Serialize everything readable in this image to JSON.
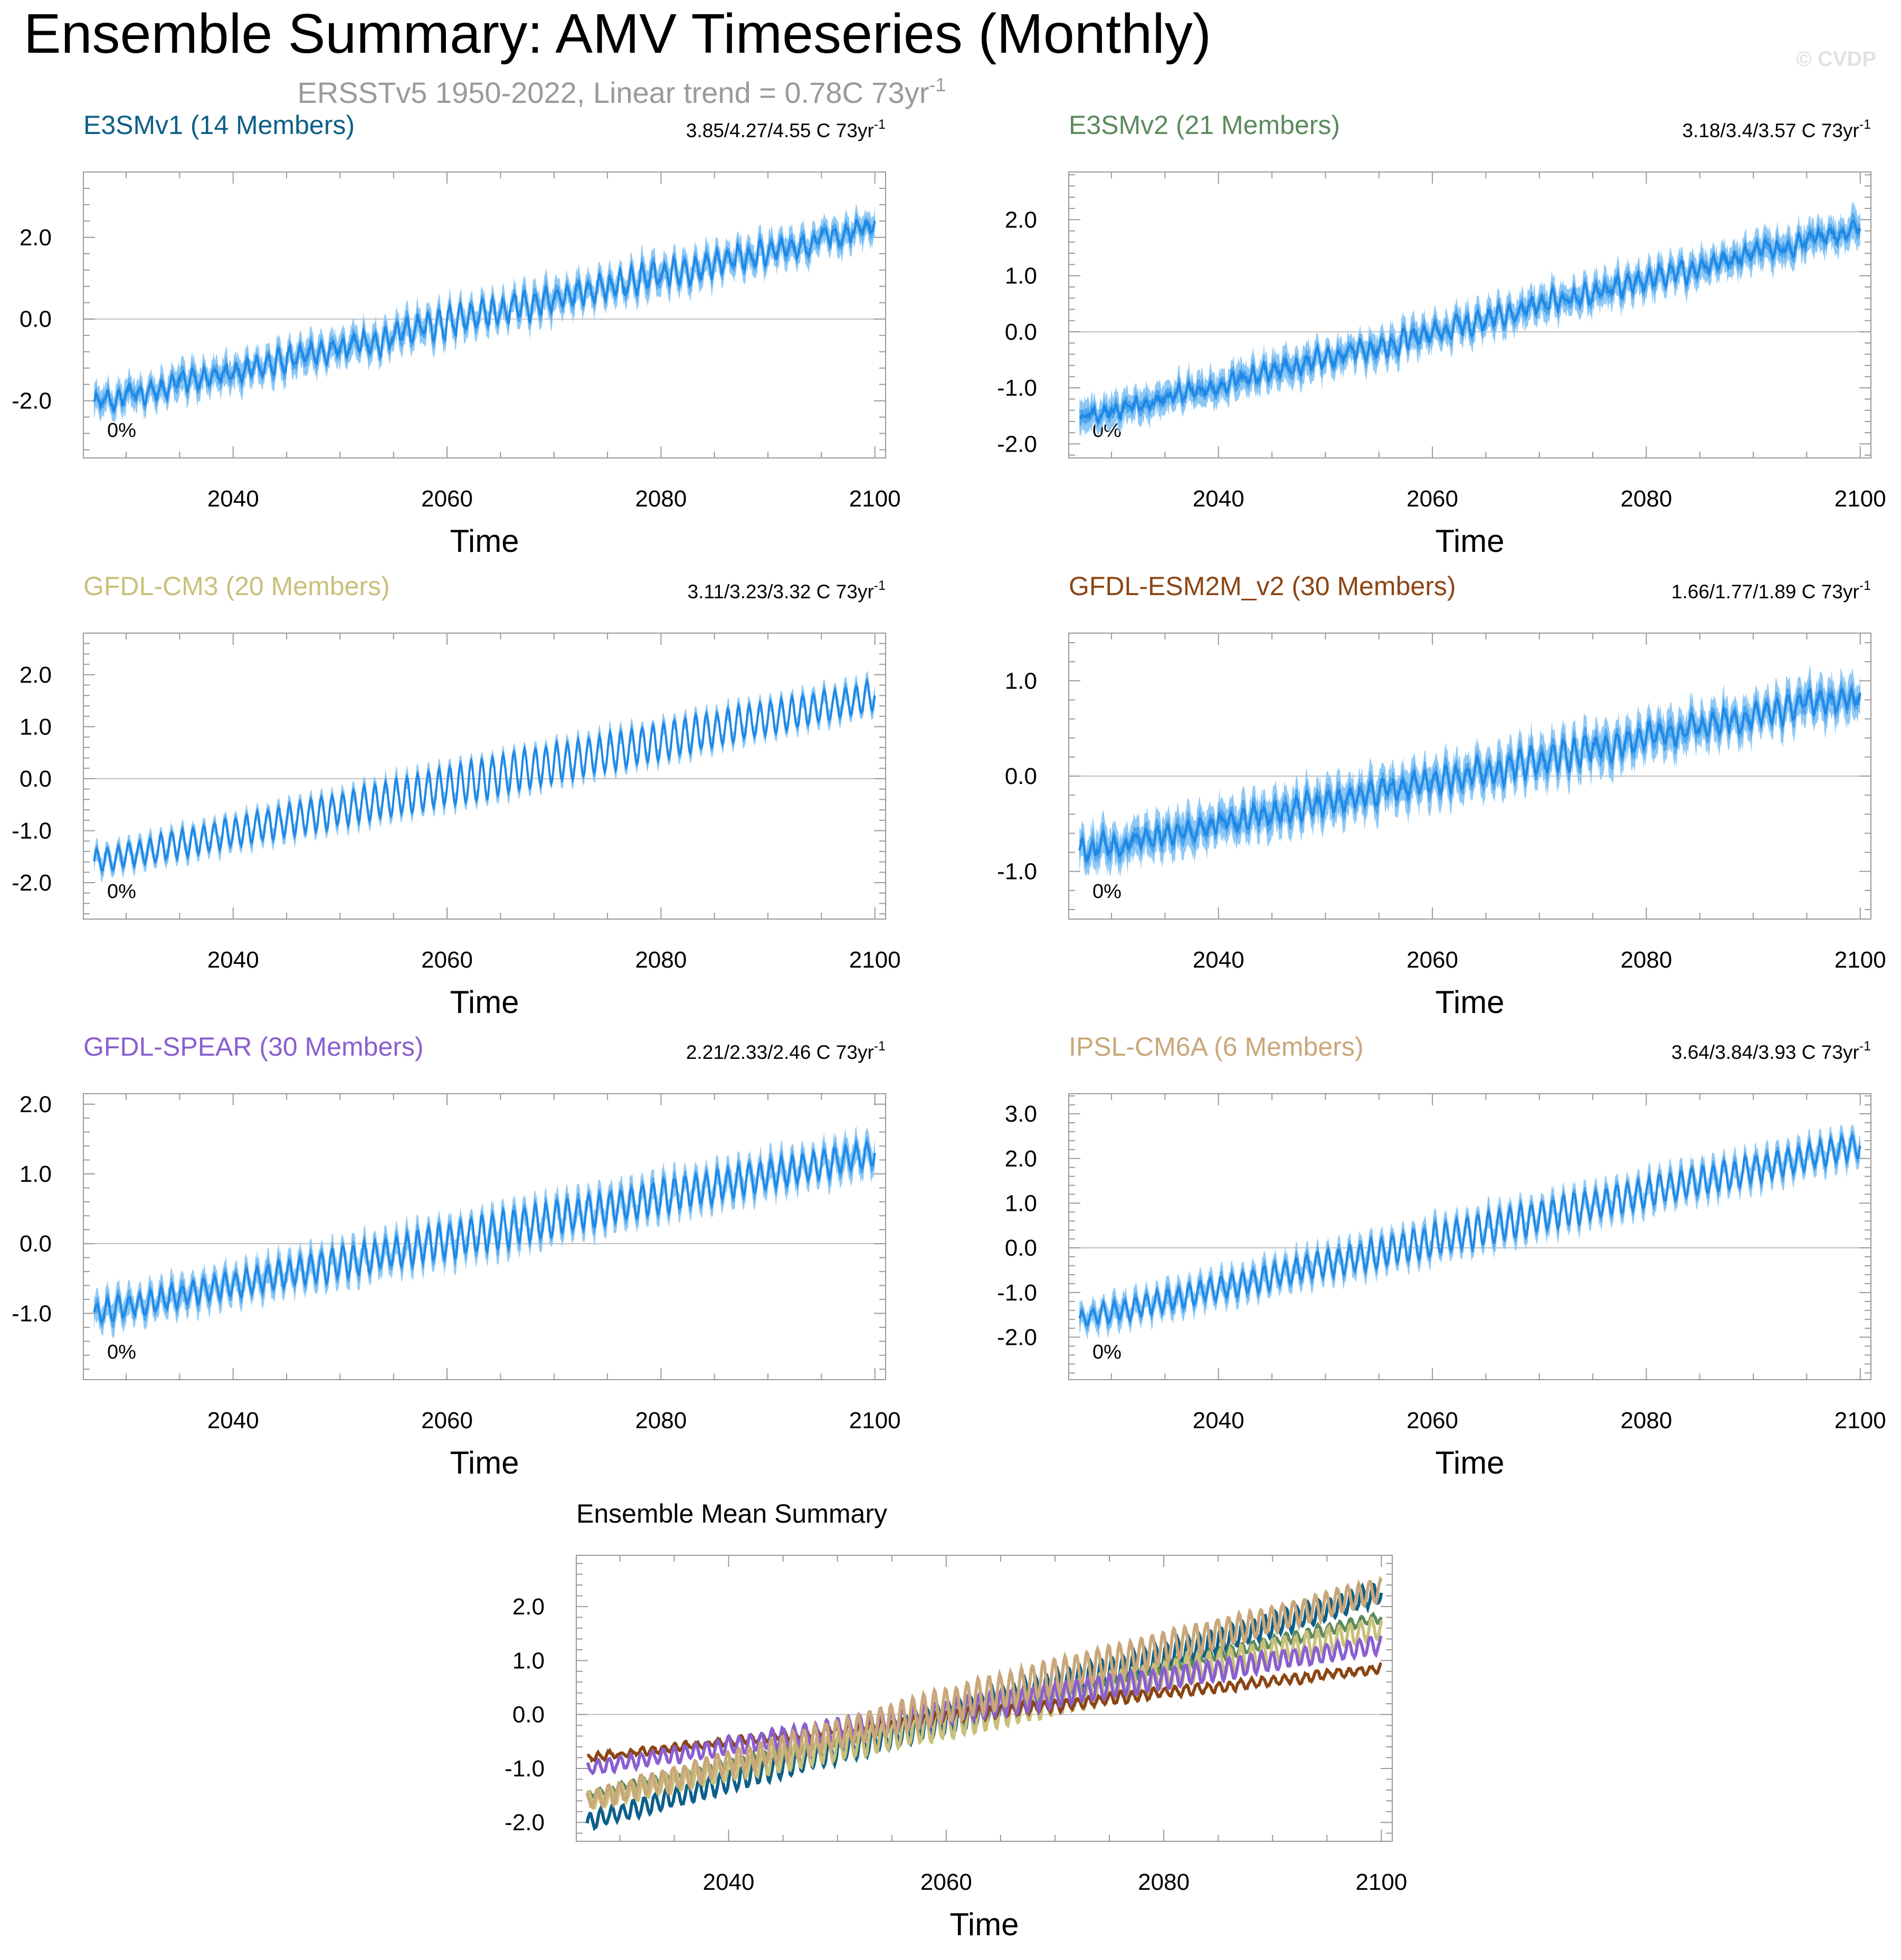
{
  "figure": {
    "title": "Ensemble Summary: AMV Timeseries (Monthly)",
    "subtitle_main": "ERSSTv5 1950-2022, Linear trend = 0.78C 73yr",
    "subtitle_sup": "-1",
    "copyright": "© CVDP"
  },
  "colors": {
    "band_light": "#8ec8f5",
    "band_mid": "#4fa6ee",
    "line": "#1e88e5",
    "grid_zero": "#bdbdbd",
    "axis": "#999999"
  },
  "chart_data": [
    {
      "type": "area",
      "title": "E3SMv1 (14 Members)",
      "title_color": "#0c5f88",
      "trend_text": "3.85/4.27/4.55 C 73yr",
      "trend_sup": "-1",
      "pct_label": "0%",
      "xlabel": "Time",
      "ylabel": "",
      "xlim": [
        2026,
        2101
      ],
      "ylim": [
        -3.4,
        3.6
      ],
      "xticks": [
        2040,
        2060,
        2080,
        2100
      ],
      "yticks": [
        -2.0,
        0.0,
        2.0
      ],
      "ytick_labels": [
        "-2.0",
        "0.0",
        "2.0"
      ],
      "series": {
        "start": [
          2027,
          -2.05
        ],
        "end": [
          2100,
          2.25
        ],
        "seasonal_amp": 0.3,
        "noise": 0.22,
        "spread": 0.38,
        "bend": 0.0
      }
    },
    {
      "type": "area",
      "title": "E3SMv2 (21 Members)",
      "title_color": "#5b8a5d",
      "trend_text": "3.18/3.4/3.57 C 73yr",
      "trend_sup": "-1",
      "pct_label": "0%",
      "xlabel": "Time",
      "ylabel": "",
      "xlim": [
        2026,
        2101
      ],
      "ylim": [
        -2.25,
        2.85
      ],
      "xticks": [
        2040,
        2060,
        2080,
        2100
      ],
      "yticks": [
        -2.0,
        -1.0,
        0.0,
        1.0,
        2.0
      ],
      "ytick_labels": [
        "-2.0",
        "-1.0",
        "0.0",
        "1.0",
        "2.0"
      ],
      "series": {
        "start": [
          2027,
          -1.55
        ],
        "end": [
          2100,
          1.85
        ],
        "seasonal_amp": 0.15,
        "noise": 0.16,
        "spread": 0.3,
        "bend": 0.0
      }
    },
    {
      "type": "area",
      "title": "GFDL-CM3 (20 Members)",
      "title_color": "#c9c07a",
      "trend_text": "3.11/3.23/3.32 C 73yr",
      "trend_sup": "-1",
      "pct_label": "0%",
      "xlabel": "Time",
      "ylabel": "",
      "xlim": [
        2026,
        2101
      ],
      "ylim": [
        -2.7,
        2.8
      ],
      "xticks": [
        2040,
        2060,
        2080,
        2100
      ],
      "yticks": [
        -2.0,
        -1.0,
        0.0,
        1.0,
        2.0
      ],
      "ytick_labels": [
        "-2.0",
        "-1.0",
        "0.0",
        "1.0",
        "2.0"
      ],
      "series": {
        "start": [
          2027,
          -1.6
        ],
        "end": [
          2100,
          1.6
        ],
        "seasonal_amp": 0.38,
        "noise": 0.05,
        "spread": 0.2,
        "bend": 0.0
      }
    },
    {
      "type": "area",
      "title": "GFDL-ESM2M_v2 (30 Members)",
      "title_color": "#8b4513",
      "trend_text": "1.66/1.77/1.89 C 73yr",
      "trend_sup": "-1",
      "pct_label": "0%",
      "xlabel": "Time",
      "ylabel": "",
      "xlim": [
        2026,
        2101
      ],
      "ylim": [
        -1.5,
        1.5
      ],
      "xticks": [
        2040,
        2060,
        2080,
        2100
      ],
      "yticks": [
        -1.0,
        0.0,
        1.0
      ],
      "ytick_labels": [
        "-1.0",
        "0.0",
        "1.0"
      ],
      "series": {
        "start": [
          2027,
          -0.8
        ],
        "end": [
          2100,
          0.85
        ],
        "seasonal_amp": 0.12,
        "noise": 0.1,
        "spread": 0.22,
        "bend": 0.0
      }
    },
    {
      "type": "area",
      "title": "GFDL-SPEAR (30 Members)",
      "title_color": "#8a5fd0",
      "trend_text": "2.21/2.33/2.46 C 73yr",
      "trend_sup": "-1",
      "pct_label": "0%",
      "xlabel": "Time",
      "ylabel": "",
      "xlim": [
        2026,
        2101
      ],
      "ylim": [
        -1.95,
        2.15
      ],
      "xticks": [
        2040,
        2060,
        2080,
        2100
      ],
      "yticks": [
        -1.0,
        0.0,
        1.0,
        2.0
      ],
      "ytick_labels": [
        "-1.0",
        "0.0",
        "1.0",
        "2.0"
      ],
      "series": {
        "start": [
          2027,
          -1.0
        ],
        "end": [
          2100,
          1.3
        ],
        "seasonal_amp": 0.25,
        "noise": 0.06,
        "spread": 0.22,
        "bend": 0.0
      }
    },
    {
      "type": "area",
      "title": "IPSL-CM6A (6 Members)",
      "title_color": "#c9a77a",
      "trend_text": "3.64/3.84/3.93 C 73yr",
      "trend_sup": "-1",
      "pct_label": "0%",
      "xlabel": "Time",
      "ylabel": "",
      "xlim": [
        2026,
        2101
      ],
      "ylim": [
        -2.95,
        3.45
      ],
      "xticks": [
        2040,
        2060,
        2080,
        2100
      ],
      "yticks": [
        -2.0,
        -1.0,
        0.0,
        1.0,
        2.0,
        3.0
      ],
      "ytick_labels": [
        "-2.0",
        "-1.0",
        "0.0",
        "1.0",
        "2.0",
        "3.0"
      ],
      "series": {
        "start": [
          2027,
          -1.6
        ],
        "end": [
          2100,
          2.3
        ],
        "seasonal_amp": 0.35,
        "noise": 0.08,
        "spread": 0.3,
        "bend": 0.0
      }
    },
    {
      "type": "line",
      "title": "Ensemble Mean Summary",
      "xlabel": "Time",
      "ylabel": "",
      "xlim": [
        2026,
        2101
      ],
      "ylim": [
        -2.35,
        2.95
      ],
      "xticks": [
        2040,
        2060,
        2080,
        2100
      ],
      "yticks": [
        -2.0,
        -1.0,
        0.0,
        1.0,
        2.0
      ],
      "ytick_labels": [
        "-2.0",
        "-1.0",
        "0.0",
        "1.0",
        "2.0"
      ],
      "series": [
        {
          "name": "E3SMv1",
          "color": "#0c5f88",
          "start": [
            2027,
            -2.0
          ],
          "end": [
            2100,
            2.25
          ],
          "seasonal_amp": 0.28
        },
        {
          "name": "E3SMv2",
          "color": "#5b8a5d",
          "start": [
            2027,
            -1.5
          ],
          "end": [
            2100,
            1.8
          ],
          "seasonal_amp": 0.12
        },
        {
          "name": "GFDL-CM3",
          "color": "#c9c07a",
          "start": [
            2027,
            -1.6
          ],
          "end": [
            2100,
            1.6
          ],
          "seasonal_amp": 0.3
        },
        {
          "name": "GFDL-ESM2M_v2",
          "color": "#8b4513",
          "start": [
            2027,
            -0.8
          ],
          "end": [
            2100,
            0.85
          ],
          "seasonal_amp": 0.1
        },
        {
          "name": "GFDL-SPEAR",
          "color": "#8a5fd0",
          "start": [
            2027,
            -1.0
          ],
          "end": [
            2100,
            1.3
          ],
          "seasonal_amp": 0.22
        },
        {
          "name": "IPSL-CM6A",
          "color": "#c9a77a",
          "start": [
            2027,
            -1.6
          ],
          "end": [
            2100,
            2.3
          ],
          "seasonal_amp": 0.32
        }
      ]
    }
  ]
}
